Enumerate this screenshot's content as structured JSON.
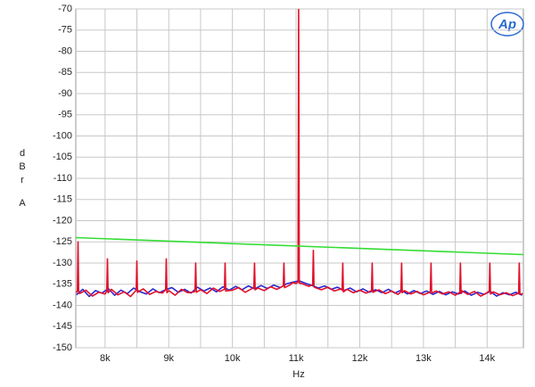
{
  "chart_data": {
    "type": "line",
    "y_label_lines": [
      "d",
      "B",
      "r",
      "A"
    ],
    "x_label": "Hz",
    "logo": "Ap",
    "xlim": [
      7540,
      14570
    ],
    "ylim": [
      -150,
      -70
    ],
    "xticks": [
      {
        "value": 8000,
        "label": "8k"
      },
      {
        "value": 9000,
        "label": "9k"
      },
      {
        "value": 10000,
        "label": "10k"
      },
      {
        "value": 11000,
        "label": "11k"
      },
      {
        "value": 12000,
        "label": "12k"
      },
      {
        "value": 13000,
        "label": "13k"
      },
      {
        "value": 14000,
        "label": "14k"
      }
    ],
    "xminorticks": [
      8500,
      9500,
      10500,
      11500,
      12500,
      13500
    ],
    "yticks": [
      -150,
      -145,
      -140,
      -135,
      -130,
      -125,
      -120,
      -115,
      -110,
      -105,
      -100,
      -95,
      -90,
      -85,
      -80,
      -75,
      -70
    ],
    "grid": true,
    "series": [
      {
        "color": "#2a2ad0",
        "x": [
          7550,
          7650,
          7750,
          7850,
          7950,
          8050,
          8150,
          8250,
          8350,
          8450,
          8550,
          8650,
          8750,
          8850,
          8950,
          9050,
          9150,
          9250,
          9350,
          9450,
          9550,
          9650,
          9750,
          9850,
          9950,
          10050,
          10150,
          10250,
          10350,
          10450,
          10550,
          10650,
          10750,
          10850,
          10950,
          11050,
          11150,
          11250,
          11350,
          11450,
          11550,
          11650,
          11750,
          11850,
          11950,
          12050,
          12150,
          12250,
          12350,
          12450,
          12550,
          12650,
          12750,
          12850,
          12950,
          13050,
          13150,
          13250,
          13350,
          13450,
          13550,
          13650,
          13750,
          13850,
          13950,
          14050,
          14150,
          14250,
          14350,
          14450,
          14550
        ],
        "values": [
          -137.5,
          -136.2,
          -137.9,
          -136.5,
          -137.1,
          -136.0,
          -137.6,
          -136.4,
          -137.2,
          -135.9,
          -136.8,
          -137.3,
          -136.1,
          -137.0,
          -136.3,
          -135.8,
          -136.9,
          -136.2,
          -137.1,
          -135.7,
          -136.6,
          -135.9,
          -136.8,
          -135.6,
          -136.4,
          -135.5,
          -136.3,
          -135.4,
          -136.1,
          -135.3,
          -136.0,
          -135.2,
          -135.8,
          -134.9,
          -134.5,
          -134.2,
          -134.8,
          -135.3,
          -135.9,
          -135.4,
          -136.2,
          -135.7,
          -136.5,
          -135.9,
          -136.8,
          -136.1,
          -136.9,
          -136.3,
          -137.0,
          -136.2,
          -137.1,
          -136.4,
          -137.3,
          -136.5,
          -137.2,
          -136.6,
          -137.4,
          -136.7,
          -137.5,
          -136.8,
          -137.3,
          -136.6,
          -137.6,
          -136.9,
          -137.4,
          -136.7,
          -137.8,
          -137.0,
          -137.5,
          -136.9,
          -137.6
        ]
      },
      {
        "color": "#e0102a",
        "x": [
          7550,
          7565,
          7575,
          7585,
          7600,
          7700,
          7800,
          7900,
          8000,
          8027,
          8037,
          8047,
          8100,
          8200,
          8300,
          8400,
          8489,
          8499,
          8509,
          8600,
          8700,
          8800,
          8900,
          8951,
          8961,
          8971,
          9000,
          9100,
          9200,
          9300,
          9400,
          9413,
          9423,
          9433,
          9500,
          9600,
          9700,
          9800,
          9875,
          9885,
          9895,
          10000,
          10100,
          10200,
          10300,
          10337,
          10347,
          10357,
          10400,
          10500,
          10600,
          10700,
          10799,
          10809,
          10819,
          10900,
          10950,
          11000,
          11030,
          11040,
          11050,
          11100,
          11200,
          11261,
          11271,
          11281,
          11300,
          11400,
          11500,
          11600,
          11700,
          11723,
          11733,
          11743,
          11800,
          11900,
          12000,
          12100,
          12185,
          12195,
          12205,
          12300,
          12400,
          12500,
          12600,
          12647,
          12657,
          12667,
          12700,
          12800,
          12900,
          13000,
          13100,
          13109,
          13119,
          13129,
          13200,
          13300,
          13400,
          13500,
          13571,
          13581,
          13591,
          13600,
          13700,
          13800,
          13900,
          14000,
          14033,
          14043,
          14053,
          14100,
          14200,
          14300,
          14400,
          14495,
          14505,
          14515,
          14560
        ],
        "values": [
          -137,
          -136.5,
          -125,
          -136.8,
          -137.2,
          -136.4,
          -137.8,
          -136.9,
          -137.3,
          -136.6,
          -129,
          -137,
          -136.2,
          -137.5,
          -136.8,
          -137.9,
          -136.4,
          -129.5,
          -136.9,
          -136.1,
          -137.4,
          -136.7,
          -137.1,
          -136.3,
          -129,
          -137,
          -136.5,
          -137.6,
          -136.2,
          -137,
          -136.8,
          -136.5,
          -130,
          -136.9,
          -136.3,
          -137.2,
          -135.9,
          -136.7,
          -136.2,
          -130,
          -136.6,
          -136.4,
          -135.8,
          -136.9,
          -136.1,
          -135.7,
          -130,
          -136.3,
          -135.9,
          -136.5,
          -135.6,
          -136.2,
          -135.4,
          -130,
          -135.8,
          -135.2,
          -134.6,
          -134.8,
          -134.5,
          -70,
          -134.7,
          -134.9,
          -135.5,
          -135.1,
          -127,
          -135.6,
          -135.8,
          -136.3,
          -135.7,
          -136.6,
          -136.1,
          -136.4,
          -130,
          -136.8,
          -136.2,
          -137,
          -136.4,
          -137.1,
          -136.5,
          -130,
          -136.9,
          -136.3,
          -137.2,
          -136.6,
          -137.4,
          -136.8,
          -130,
          -137,
          -136.5,
          -137.3,
          -136.7,
          -137.5,
          -136.9,
          -136.4,
          -130,
          -137.1,
          -136.6,
          -137.3,
          -136.8,
          -137.6,
          -136.9,
          -130,
          -137.2,
          -136.5,
          -137.4,
          -136.7,
          -137.8,
          -137,
          -136.6,
          -130,
          -137.3,
          -136.8,
          -137.5,
          -137,
          -137.7,
          -137.1,
          -130,
          -137.4,
          -137.2
        ]
      },
      {
        "color": "#33dd33",
        "x": [
          7540,
          14570
        ],
        "values": [
          -124,
          -128
        ]
      }
    ]
  }
}
